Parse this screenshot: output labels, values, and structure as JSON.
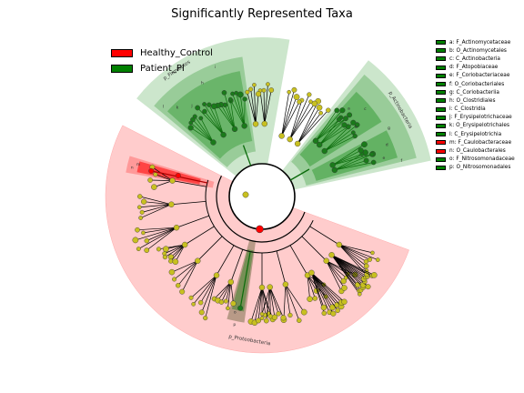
{
  "chart_data": {
    "type": "cladogram",
    "title": "Significantly Represented Taxa",
    "groups": [
      {
        "name": "Healthy_Control",
        "color": "#ff0000"
      },
      {
        "name": "Patient_PI",
        "color": "#008000"
      }
    ],
    "taxa": [
      {
        "key": "a",
        "name": "F_Actinomycetaceae",
        "group": "Patient_PI"
      },
      {
        "key": "b",
        "name": "O_Actinomycetales",
        "group": "Patient_PI"
      },
      {
        "key": "c",
        "name": "C_Actinobacteria",
        "group": "Patient_PI"
      },
      {
        "key": "d",
        "name": "F_Atopobiaceae",
        "group": "Patient_PI"
      },
      {
        "key": "e",
        "name": "F_Coriobacteriaceae",
        "group": "Patient_PI"
      },
      {
        "key": "f",
        "name": "O_Coriobacteriales",
        "group": "Patient_PI"
      },
      {
        "key": "g",
        "name": "C_Coriobacteriia",
        "group": "Patient_PI"
      },
      {
        "key": "h",
        "name": "O_Clostridiales",
        "group": "Patient_PI"
      },
      {
        "key": "i",
        "name": "C_Clostridia",
        "group": "Patient_PI"
      },
      {
        "key": "j",
        "name": "F_Erysipelotrichaceae",
        "group": "Patient_PI"
      },
      {
        "key": "k",
        "name": "O_Erysipelotrichales",
        "group": "Patient_PI"
      },
      {
        "key": "l",
        "name": "C_Erysipelotrichia",
        "group": "Patient_PI"
      },
      {
        "key": "m",
        "name": "F_Caulobacteraceae",
        "group": "Healthy_Control"
      },
      {
        "key": "n",
        "name": "O_Caulobacterales",
        "group": "Healthy_Control"
      },
      {
        "key": "o",
        "name": "F_Nitrosomonadaceae",
        "group": "Patient_PI"
      },
      {
        "key": "p",
        "name": "O_Nitrosomonadales",
        "group": "Patient_PI"
      }
    ],
    "phylum_labels": [
      {
        "text": "p_Firmicutes",
        "group": "Patient_PI"
      },
      {
        "text": "p_Actinobacteria",
        "group": "Patient_PI"
      },
      {
        "text": "p_Proteobacteria",
        "group": "Healthy_Control"
      }
    ],
    "sector_letters": [
      "a",
      "b",
      "c",
      "d",
      "e",
      "f",
      "g",
      "h",
      "i",
      "j",
      "k",
      "l",
      "m",
      "n",
      "o",
      "p"
    ],
    "style": {
      "node_color": "#c8c020",
      "healthy_shade": "#ffcccc",
      "patient_shade": "#008000"
    }
  }
}
